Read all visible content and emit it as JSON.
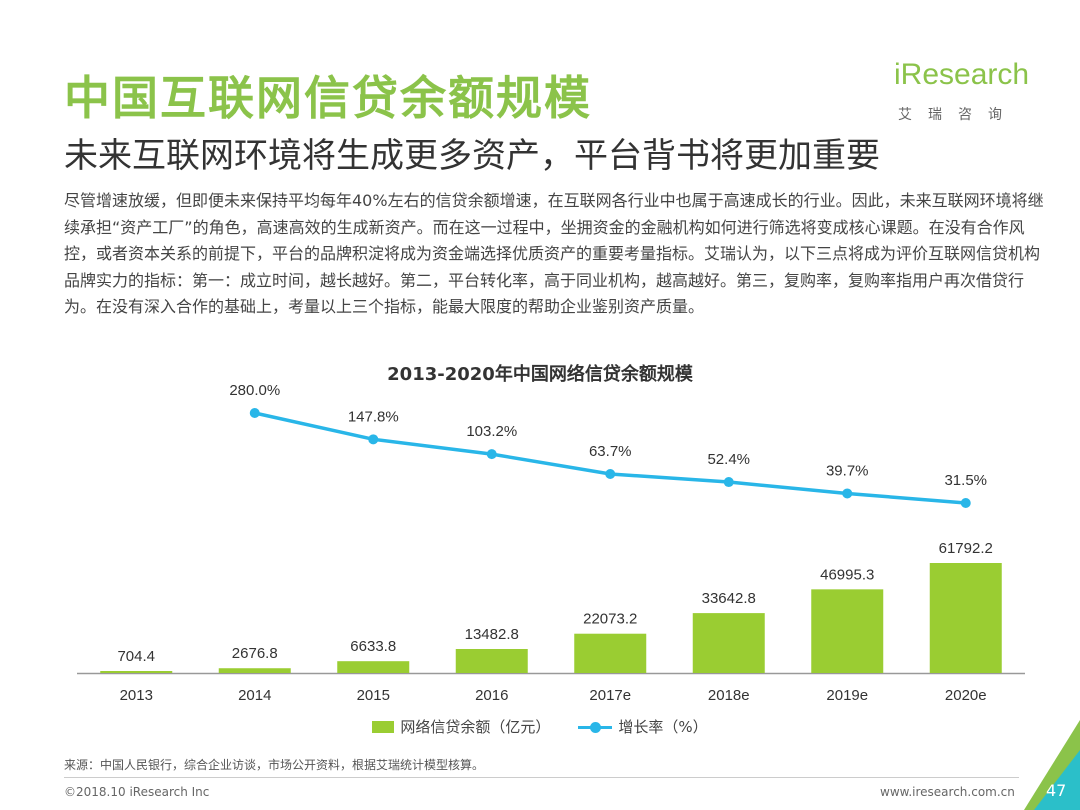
{
  "header": {
    "title": "中国互联网信贷余额规模",
    "subtitle": "未来互联网环境将生成更多资产，平台背书将更加重要",
    "body": "尽管增速放缓，但即便未来保持平均每年40%左右的信贷余额增速，在互联网各行业中也属于高速成长的行业。因此，未来互联网环境将继续承担“资产工厂”的角色，高速高效的生成新资产。而在这一过程中，坐拥资金的金融机构如何进行筛选将变成核心课题。在没有合作风控，或者资本关系的前提下，平台的品牌积淀将成为资金端选择优质资产的重要考量指标。艾瑞认为，以下三点将成为评价互联网信贷机构品牌实力的指标：第一：成立时间，越长越好。第二，平台转化率，高于同业机构，越高越好。第三，复购率，复购率指用户再次借贷行为。在没有深入合作的基础上，考量以上三个指标，能最大限度的帮助企业鉴别资产质量。"
  },
  "logo": {
    "brand": "iResearch",
    "sub": "艾瑞咨询"
  },
  "chart_data": {
    "type": "bar",
    "title": "2013-2020年中国网络信贷余额规模",
    "categories": [
      "2013",
      "2014",
      "2015",
      "2016",
      "2017e",
      "2018e",
      "2019e",
      "2020e"
    ],
    "series": [
      {
        "name": "网络信贷余额（亿元）",
        "type": "bar",
        "values": [
          704.4,
          2676.8,
          6633.8,
          13482.8,
          22073.2,
          33642.8,
          46995.3,
          61792.2
        ],
        "labels": [
          "704.4",
          "2676.8",
          "6633.8",
          "13482.8",
          "22073.2",
          "33642.8",
          "46995.3",
          "61792.2"
        ]
      },
      {
        "name": "增长率（%）",
        "type": "line",
        "values": [
          null,
          280.0,
          147.8,
          103.2,
          63.7,
          52.4,
          39.7,
          31.5
        ],
        "labels": [
          "",
          "280.0%",
          "147.8%",
          "103.2%",
          "63.7%",
          "52.4%",
          "39.7%",
          "31.5%"
        ]
      }
    ],
    "colors": {
      "bar": "#9acd32",
      "line": "#29b6e8",
      "axis": "#999999"
    }
  },
  "footer": {
    "source": "来源：中国人民银行，综合企业访谈，市场公开资料，根据艾瑞统计模型核算。",
    "copyright": "©2018.10 iResearch Inc",
    "website": "www.iresearch.com.cn",
    "page": "47"
  }
}
